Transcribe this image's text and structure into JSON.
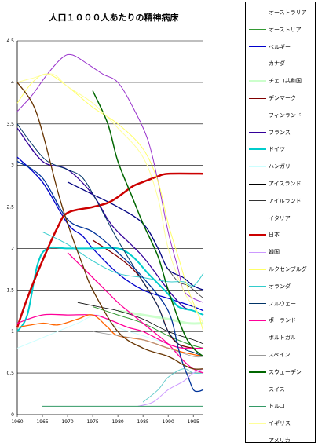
{
  "chart_data": {
    "type": "line",
    "title": "人口１０００人あたりの精神病床",
    "xlim": [
      1960,
      1997
    ],
    "ylim": [
      0,
      4.5
    ],
    "xticks": [
      1960,
      1965,
      1970,
      1975,
      1980,
      1985,
      1990,
      1995
    ],
    "yticks": [
      0,
      0.5,
      1,
      1.5,
      2,
      2.5,
      3,
      3.5,
      4,
      4.5
    ],
    "grid": true,
    "legend_position": "right",
    "series": [
      {
        "name": "オーストラリア",
        "color": "#000080",
        "width": 1.3,
        "points": [
          [
            1970,
            2.8
          ],
          [
            1975,
            2.65
          ],
          [
            1980,
            2.5
          ],
          [
            1985,
            2.3
          ],
          [
            1988,
            2.0
          ],
          [
            1990,
            1.75
          ],
          [
            1993,
            1.65
          ],
          [
            1995,
            1.55
          ],
          [
            1997,
            1.5
          ]
        ]
      },
      {
        "name": "オーストリア",
        "color": "#339933",
        "width": 1,
        "points": [
          [
            1975,
            1.3
          ],
          [
            1980,
            1.2
          ],
          [
            1985,
            1.1
          ],
          [
            1990,
            0.95
          ],
          [
            1994,
            0.85
          ],
          [
            1997,
            0.8
          ]
        ]
      },
      {
        "name": "ベルギー",
        "color": "#0000cc",
        "width": 1.3,
        "points": [
          [
            1960,
            3.1
          ],
          [
            1965,
            2.8
          ],
          [
            1970,
            2.3
          ],
          [
            1973,
            2.15
          ],
          [
            1975,
            2.0
          ],
          [
            1980,
            1.7
          ],
          [
            1985,
            1.5
          ],
          [
            1990,
            1.4
          ],
          [
            1995,
            1.3
          ],
          [
            1997,
            1.25
          ]
        ]
      },
      {
        "name": "カナダ",
        "color": "#66cccc",
        "width": 1,
        "points": [
          [
            1985,
            0.15
          ],
          [
            1988,
            0.3
          ],
          [
            1990,
            0.45
          ],
          [
            1993,
            0.55
          ],
          [
            1995,
            0.5
          ],
          [
            1997,
            0.5
          ]
        ]
      },
      {
        "name": "チェコ共和国",
        "color": "#ccffcc",
        "width": 3,
        "points": [
          [
            1980,
            1.25
          ],
          [
            1985,
            1.2
          ],
          [
            1990,
            1.15
          ],
          [
            1994,
            1.1
          ],
          [
            1997,
            1.1
          ]
        ]
      },
      {
        "name": "デンマーク",
        "color": "#800000",
        "width": 1.3,
        "points": [
          [
            1975,
            2.1
          ],
          [
            1980,
            1.9
          ],
          [
            1983,
            1.75
          ],
          [
            1985,
            1.6
          ],
          [
            1988,
            1.3
          ],
          [
            1990,
            1.0
          ],
          [
            1992,
            0.85
          ],
          [
            1995,
            0.8
          ],
          [
            1997,
            0.8
          ]
        ]
      },
      {
        "name": "フィンランド",
        "color": "#9933cc",
        "width": 1,
        "points": [
          [
            1960,
            3.65
          ],
          [
            1963,
            3.85
          ],
          [
            1966,
            4.1
          ],
          [
            1969,
            4.3
          ],
          [
            1971,
            4.33
          ],
          [
            1974,
            4.22
          ],
          [
            1977,
            4.1
          ],
          [
            1980,
            4.0
          ],
          [
            1983,
            3.7
          ],
          [
            1986,
            3.3
          ],
          [
            1988,
            2.8
          ],
          [
            1990,
            2.2
          ],
          [
            1992,
            1.75
          ],
          [
            1993,
            1.5
          ],
          [
            1995,
            1.4
          ],
          [
            1997,
            1.35
          ]
        ]
      },
      {
        "name": "フランス",
        "color": "#330099",
        "width": 1.3,
        "points": [
          [
            1960,
            3.45
          ],
          [
            1965,
            3.05
          ],
          [
            1970,
            2.95
          ],
          [
            1975,
            2.65
          ],
          [
            1978,
            2.35
          ],
          [
            1980,
            2.2
          ],
          [
            1985,
            1.9
          ],
          [
            1990,
            1.5
          ],
          [
            1993,
            1.3
          ],
          [
            1995,
            1.25
          ],
          [
            1997,
            1.2
          ]
        ]
      },
      {
        "name": "ドイツ",
        "color": "#00cccc",
        "width": 2,
        "points": [
          [
            1960,
            1.0
          ],
          [
            1962,
            1.2
          ],
          [
            1964,
            1.8
          ],
          [
            1966,
            2.0
          ],
          [
            1970,
            2.0
          ],
          [
            1975,
            2.0
          ],
          [
            1980,
            2.0
          ],
          [
            1983,
            1.9
          ],
          [
            1986,
            1.7
          ],
          [
            1990,
            1.45
          ],
          [
            1992,
            1.3
          ],
          [
            1995,
            1.25
          ],
          [
            1997,
            1.2
          ]
        ]
      },
      {
        "name": "ハンガリー",
        "color": "#ccffff",
        "width": 1,
        "points": [
          [
            1960,
            0.8
          ],
          [
            1964,
            0.9
          ],
          [
            1968,
            1.0
          ],
          [
            1972,
            1.1
          ],
          [
            1976,
            1.2
          ],
          [
            1980,
            1.05
          ],
          [
            1985,
            0.95
          ],
          [
            1990,
            0.85
          ],
          [
            1995,
            0.75
          ],
          [
            1997,
            0.7
          ]
        ]
      },
      {
        "name": "アイスランド",
        "color": "#000000",
        "width": 0.8,
        "points": [
          [
            1972,
            1.35
          ],
          [
            1976,
            1.3
          ],
          [
            1980,
            1.25
          ],
          [
            1985,
            1.15
          ],
          [
            1990,
            1.0
          ],
          [
            1995,
            0.9
          ],
          [
            1997,
            0.85
          ]
        ]
      },
      {
        "name": "アイルランド",
        "color": "#333333",
        "width": 0.8,
        "points": [
          [
            1990,
            1.75
          ],
          [
            1992,
            1.6
          ],
          [
            1994,
            1.55
          ],
          [
            1996,
            1.45
          ],
          [
            1997,
            1.4
          ]
        ]
      },
      {
        "name": "イタリア",
        "color": "#ff0099",
        "width": 1.3,
        "points": [
          [
            1970,
            1.95
          ],
          [
            1975,
            1.65
          ],
          [
            1980,
            1.35
          ],
          [
            1983,
            1.2
          ],
          [
            1986,
            1.05
          ],
          [
            1990,
            0.85
          ],
          [
            1993,
            0.65
          ],
          [
            1995,
            0.55
          ],
          [
            1997,
            0.5
          ]
        ]
      },
      {
        "name": "日本",
        "color": "#cc0000",
        "width": 2.5,
        "points": [
          [
            1960,
            1.05
          ],
          [
            1962,
            1.4
          ],
          [
            1965,
            1.85
          ],
          [
            1968,
            2.25
          ],
          [
            1970,
            2.43
          ],
          [
            1975,
            2.5
          ],
          [
            1978,
            2.55
          ],
          [
            1980,
            2.62
          ],
          [
            1983,
            2.75
          ],
          [
            1985,
            2.8
          ],
          [
            1988,
            2.87
          ],
          [
            1990,
            2.9
          ],
          [
            1997,
            2.9
          ]
        ]
      },
      {
        "name": "韓国",
        "color": "#cc99ff",
        "width": 1,
        "points": [
          [
            1984,
            0.1
          ],
          [
            1987,
            0.15
          ],
          [
            1990,
            0.3
          ],
          [
            1993,
            0.4
          ],
          [
            1995,
            0.5
          ],
          [
            1997,
            0.55
          ]
        ]
      },
      {
        "name": "ルクセンブルグ",
        "color": "#ffff66",
        "width": 1,
        "points": [
          [
            1960,
            3.75
          ],
          [
            1963,
            4.0
          ],
          [
            1966,
            4.1
          ],
          [
            1970,
            3.95
          ],
          [
            1975,
            3.7
          ],
          [
            1980,
            3.5
          ],
          [
            1985,
            3.2
          ],
          [
            1988,
            2.8
          ],
          [
            1990,
            2.3
          ],
          [
            1992,
            1.9
          ],
          [
            1994,
            1.5
          ],
          [
            1996,
            1.2
          ],
          [
            1997,
            1.0
          ]
        ]
      },
      {
        "name": "オランダ",
        "color": "#33cccc",
        "width": 1,
        "points": [
          [
            1965,
            2.2
          ],
          [
            1970,
            2.05
          ],
          [
            1975,
            1.85
          ],
          [
            1980,
            1.7
          ],
          [
            1985,
            1.65
          ],
          [
            1990,
            1.6
          ],
          [
            1993,
            1.6
          ],
          [
            1995,
            1.55
          ],
          [
            1997,
            1.7
          ]
        ]
      },
      {
        "name": "ノルウェー",
        "color": "#003366",
        "width": 1,
        "points": [
          [
            1960,
            3.5
          ],
          [
            1963,
            3.25
          ],
          [
            1966,
            3.05
          ],
          [
            1970,
            2.95
          ],
          [
            1973,
            2.85
          ],
          [
            1976,
            2.55
          ],
          [
            1980,
            2.1
          ],
          [
            1985,
            1.6
          ],
          [
            1988,
            1.3
          ],
          [
            1990,
            1.0
          ],
          [
            1993,
            0.8
          ],
          [
            1995,
            0.75
          ],
          [
            1997,
            0.7
          ]
        ]
      },
      {
        "name": "ポーランド",
        "color": "#ff0099",
        "width": 1.3,
        "points": [
          [
            1960,
            1.1
          ],
          [
            1965,
            1.2
          ],
          [
            1970,
            1.2
          ],
          [
            1975,
            1.2
          ],
          [
            1978,
            1.15
          ],
          [
            1982,
            1.05
          ],
          [
            1985,
            1.0
          ],
          [
            1990,
            0.85
          ],
          [
            1993,
            0.8
          ],
          [
            1997,
            0.8
          ]
        ]
      },
      {
        "name": "ポルトガル",
        "color": "#ff6600",
        "width": 1.3,
        "points": [
          [
            1960,
            1.05
          ],
          [
            1965,
            1.1
          ],
          [
            1968,
            1.08
          ],
          [
            1972,
            1.15
          ],
          [
            1975,
            1.2
          ],
          [
            1978,
            1.05
          ],
          [
            1980,
            0.95
          ],
          [
            1985,
            0.9
          ],
          [
            1990,
            0.8
          ],
          [
            1993,
            0.75
          ],
          [
            1997,
            0.7
          ]
        ]
      },
      {
        "name": "スペイン",
        "color": "#999999",
        "width": 0.8,
        "points": [
          [
            1975,
            1.0
          ],
          [
            1980,
            0.95
          ],
          [
            1985,
            0.9
          ],
          [
            1990,
            0.8
          ],
          [
            1995,
            0.7
          ],
          [
            1997,
            0.7
          ]
        ]
      },
      {
        "name": "スウェーデン",
        "color": "#006600",
        "width": 1.5,
        "points": [
          [
            1975,
            3.9
          ],
          [
            1978,
            3.5
          ],
          [
            1980,
            3.05
          ],
          [
            1983,
            2.6
          ],
          [
            1985,
            2.3
          ],
          [
            1988,
            1.9
          ],
          [
            1990,
            1.5
          ],
          [
            1993,
            1.0
          ],
          [
            1995,
            0.8
          ],
          [
            1997,
            0.7
          ]
        ]
      },
      {
        "name": "スイス",
        "color": "#003399",
        "width": 1.3,
        "points": [
          [
            1960,
            3.05
          ],
          [
            1965,
            2.85
          ],
          [
            1970,
            2.35
          ],
          [
            1975,
            2.2
          ],
          [
            1980,
            1.95
          ],
          [
            1985,
            1.65
          ],
          [
            1990,
            1.25
          ],
          [
            1992,
            0.8
          ],
          [
            1993,
            0.6
          ],
          [
            1994,
            0.45
          ],
          [
            1995,
            0.3
          ],
          [
            1996,
            0.28
          ],
          [
            1997,
            0.3
          ]
        ]
      },
      {
        "name": "トルコ",
        "color": "#339966",
        "width": 1,
        "points": [
          [
            1965,
            0.1
          ],
          [
            1970,
            0.1
          ],
          [
            1980,
            0.1
          ],
          [
            1990,
            0.1
          ],
          [
            1997,
            0.1
          ]
        ]
      },
      {
        "name": "イギリス",
        "color": "#ffff99",
        "width": 1,
        "points": [
          [
            1960,
            4.0
          ],
          [
            1963,
            4.05
          ],
          [
            1967,
            4.1
          ],
          [
            1970,
            3.95
          ],
          [
            1975,
            3.75
          ],
          [
            1980,
            3.45
          ],
          [
            1985,
            3.1
          ],
          [
            1988,
            2.6
          ],
          [
            1990,
            2.0
          ],
          [
            1993,
            1.5
          ],
          [
            1995,
            1.3
          ],
          [
            1997,
            1.1
          ]
        ]
      },
      {
        "name": "アメリカ",
        "color": "#663300",
        "width": 1.3,
        "points": [
          [
            1960,
            4.0
          ],
          [
            1963,
            3.75
          ],
          [
            1965,
            3.4
          ],
          [
            1968,
            2.7
          ],
          [
            1970,
            2.3
          ],
          [
            1973,
            1.8
          ],
          [
            1975,
            1.5
          ],
          [
            1980,
            1.0
          ],
          [
            1985,
            0.8
          ],
          [
            1990,
            0.7
          ],
          [
            1993,
            0.6
          ],
          [
            1995,
            0.55
          ],
          [
            1997,
            0.55
          ]
        ]
      }
    ]
  }
}
